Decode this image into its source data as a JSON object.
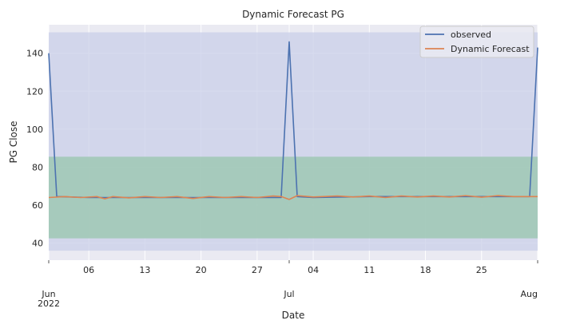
{
  "chart_data": {
    "type": "line",
    "title": "Dynamic Forecast PG",
    "xlabel": "Date",
    "ylabel": "PG Close",
    "x_start": "2022-06-01",
    "x_end": "2022-08-01",
    "ylim": [
      31,
      155
    ],
    "yticks": [
      40,
      60,
      80,
      100,
      120,
      140
    ],
    "xticks": [
      {
        "date": "2022-06-01",
        "label": "Jun",
        "sublabel": "2022"
      },
      {
        "date": "2022-06-06",
        "label": "06",
        "sublabel": ""
      },
      {
        "date": "2022-06-13",
        "label": "13",
        "sublabel": ""
      },
      {
        "date": "2022-06-20",
        "label": "20",
        "sublabel": ""
      },
      {
        "date": "2022-06-27",
        "label": "27",
        "sublabel": ""
      },
      {
        "date": "2022-07-01",
        "label": "Jul",
        "sublabel": ""
      },
      {
        "date": "2022-07-04",
        "label": "04",
        "sublabel": ""
      },
      {
        "date": "2022-07-11",
        "label": "11",
        "sublabel": ""
      },
      {
        "date": "2022-07-18",
        "label": "18",
        "sublabel": ""
      },
      {
        "date": "2022-07-25",
        "label": "25",
        "sublabel": ""
      },
      {
        "date": "2022-08-01",
        "label": "Aug",
        "sublabel": ""
      }
    ],
    "grid": true,
    "legend_position": "top-right",
    "colors": {
      "background": "#eaeaf2",
      "grid": "#ffffff",
      "observed": "#4c72b0",
      "forecast": "#dd8452",
      "outer_band": "#c9cfe8",
      "inner_band": "#9fc8b4"
    },
    "bands": [
      {
        "kind": "outer",
        "x_start": "2022-06-01",
        "x_end": "2022-08-01",
        "lower": 36,
        "upper": 151
      },
      {
        "kind": "inner",
        "x_start": "2022-06-01",
        "x_end": "2022-08-01",
        "lower": 42.5,
        "upper": 85.5
      }
    ],
    "series": [
      {
        "name": "observed",
        "points": [
          [
            "2022-06-01",
            140
          ],
          [
            "2022-06-02",
            64.5
          ],
          [
            "2022-06-06",
            64
          ],
          [
            "2022-06-13",
            64
          ],
          [
            "2022-06-20",
            64
          ],
          [
            "2022-06-27",
            64
          ],
          [
            "2022-06-30",
            64
          ],
          [
            "2022-07-01",
            146
          ],
          [
            "2022-07-02",
            64.5
          ],
          [
            "2022-07-04",
            64
          ],
          [
            "2022-07-11",
            64.5
          ],
          [
            "2022-07-18",
            64.5
          ],
          [
            "2022-07-25",
            64.5
          ],
          [
            "2022-07-31",
            64.5
          ],
          [
            "2022-08-01",
            143
          ]
        ]
      },
      {
        "name": "Dynamic Forecast",
        "points": [
          [
            "2022-06-01",
            64
          ],
          [
            "2022-06-03",
            64.5
          ],
          [
            "2022-06-05",
            64
          ],
          [
            "2022-06-07",
            64.5
          ],
          [
            "2022-06-08",
            63.3
          ],
          [
            "2022-06-09",
            64.5
          ],
          [
            "2022-06-11",
            63.8
          ],
          [
            "2022-06-13",
            64.5
          ],
          [
            "2022-06-15",
            64
          ],
          [
            "2022-06-17",
            64.5
          ],
          [
            "2022-06-19",
            63.5
          ],
          [
            "2022-06-21",
            64.5
          ],
          [
            "2022-06-23",
            64
          ],
          [
            "2022-06-25",
            64.5
          ],
          [
            "2022-06-27",
            64
          ],
          [
            "2022-06-29",
            64.8
          ],
          [
            "2022-06-30",
            64.5
          ],
          [
            "2022-07-01",
            63
          ],
          [
            "2022-07-02",
            65
          ],
          [
            "2022-07-04",
            64.3
          ],
          [
            "2022-07-07",
            64.8
          ],
          [
            "2022-07-09",
            64.3
          ],
          [
            "2022-07-11",
            64.8
          ],
          [
            "2022-07-13",
            64
          ],
          [
            "2022-07-15",
            64.8
          ],
          [
            "2022-07-17",
            64.3
          ],
          [
            "2022-07-19",
            64.8
          ],
          [
            "2022-07-21",
            64.3
          ],
          [
            "2022-07-23",
            65
          ],
          [
            "2022-07-25",
            64.2
          ],
          [
            "2022-07-27",
            65
          ],
          [
            "2022-07-29",
            64.5
          ],
          [
            "2022-08-01",
            64.5
          ]
        ]
      }
    ]
  }
}
